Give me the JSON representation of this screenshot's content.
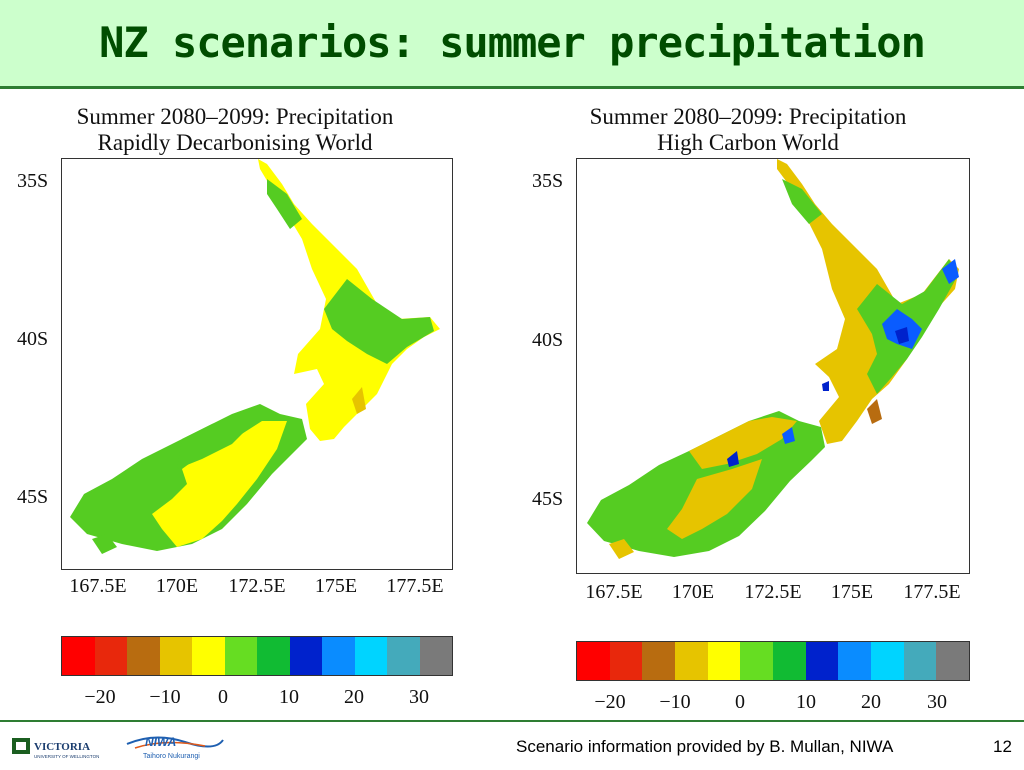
{
  "slide": {
    "title": "NZ scenarios: summer precipitation",
    "footer": "Scenario information provided by B. Mullan, NIWA",
    "page_number": "12"
  },
  "panels": [
    {
      "title_line1": "Summer 2080–2099: Precipitation",
      "title_line2": "Rapidly Decarbonising World",
      "lat_labels": [
        "35S",
        "40S",
        "45S"
      ],
      "lon_labels": [
        "167.5E",
        "170E",
        "172.5E",
        "175E",
        "177.5E"
      ]
    },
    {
      "title_line1": "Summer 2080–2099: Precipitation",
      "title_line2": "High Carbon World",
      "lat_labels": [
        "35S",
        "40S",
        "45S"
      ],
      "lon_labels": [
        "167.5E",
        "170E",
        "172.5E",
        "175E",
        "177.5E"
      ]
    }
  ],
  "colorbar": {
    "colors": [
      "#ff0000",
      "#e8280c",
      "#b86c10",
      "#e6c400",
      "#ffff00",
      "#66dd22",
      "#11bb33",
      "#0022cc",
      "#0a8cff",
      "#00d4ff",
      "#44aabb",
      "#7a7a7a"
    ],
    "tick_labels": [
      "−20",
      "−10",
      "0",
      "10",
      "20",
      "30"
    ]
  },
  "logos": {
    "victoria_text": "VICTORIA",
    "victoria_sub": "UNIVERSITY OF WELLINGTON",
    "niwa_text": "NIWA",
    "niwa_sub": "Taihoro Nukurangi"
  }
}
